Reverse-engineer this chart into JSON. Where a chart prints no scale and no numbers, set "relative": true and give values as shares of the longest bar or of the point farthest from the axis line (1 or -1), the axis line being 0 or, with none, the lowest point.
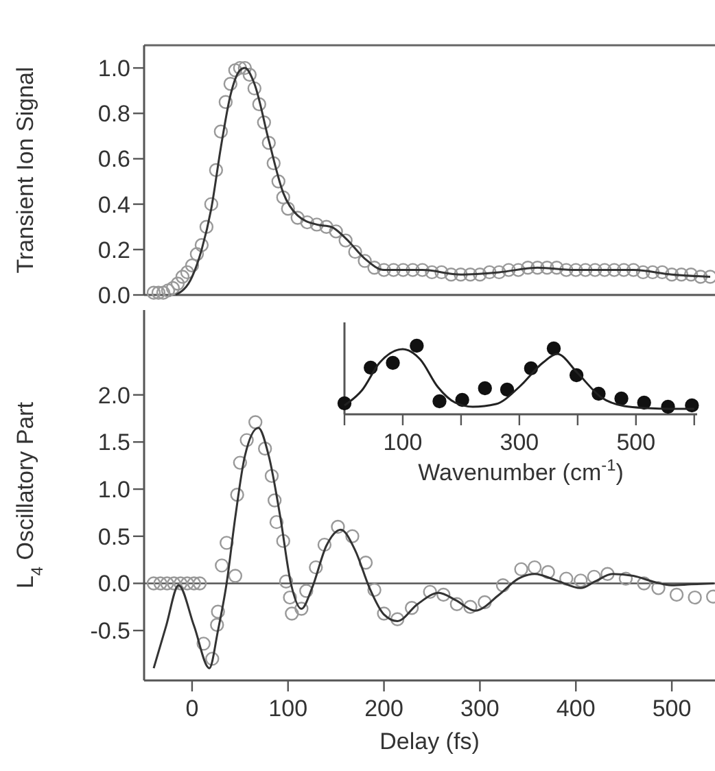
{
  "chart_data": [
    {
      "type": "scatter",
      "ylabel": "Transient Ion Signal",
      "xlim": [
        -50,
        545
      ],
      "ylim": [
        0,
        1.1
      ],
      "yticks": [
        {
          "value": 0,
          "label": "0.0"
        },
        0.2,
        0.4,
        0.6,
        0.8,
        {
          "value": 1,
          "label": "1.0"
        }
      ],
      "tick_labels": "y",
      "series": [
        {
          "marker": "circle",
          "color": "#999999",
          "x": [
            -40,
            -35,
            -30,
            -25,
            -20,
            -15,
            -10,
            -5,
            0,
            5,
            10,
            15,
            20,
            25,
            30,
            35,
            40,
            45,
            50,
            55,
            60,
            65,
            70,
            75,
            80,
            85,
            90,
            95,
            100,
            110,
            120,
            130,
            140,
            150,
            160,
            170,
            180,
            190,
            200,
            210,
            220,
            230,
            240,
            250,
            260,
            270,
            280,
            290,
            300,
            310,
            320,
            330,
            340,
            350,
            360,
            370,
            380,
            390,
            400,
            410,
            420,
            430,
            440,
            450,
            460,
            470,
            480,
            490,
            500,
            510,
            520,
            530,
            540
          ],
          "values": [
            0.01,
            0.01,
            0.01,
            0.02,
            0.03,
            0.05,
            0.08,
            0.1,
            0.13,
            0.18,
            0.22,
            0.3,
            0.4,
            0.55,
            0.72,
            0.85,
            0.93,
            0.99,
            1.0,
            1.0,
            0.97,
            0.91,
            0.84,
            0.76,
            0.67,
            0.58,
            0.5,
            0.43,
            0.38,
            0.34,
            0.32,
            0.31,
            0.3,
            0.28,
            0.24,
            0.19,
            0.15,
            0.12,
            0.11,
            0.11,
            0.11,
            0.11,
            0.11,
            0.1,
            0.1,
            0.09,
            0.09,
            0.09,
            0.09,
            0.1,
            0.1,
            0.11,
            0.11,
            0.12,
            0.12,
            0.12,
            0.12,
            0.11,
            0.11,
            0.11,
            0.11,
            0.11,
            0.11,
            0.11,
            0.11,
            0.1,
            0.1,
            0.1,
            0.09,
            0.09,
            0.09,
            0.08,
            0.08
          ]
        },
        {
          "type": "line",
          "color": "#333333",
          "x": [
            -17,
            0,
            10,
            20,
            30,
            40,
            50,
            55,
            65,
            80,
            95,
            110,
            130,
            145,
            160,
            180,
            200,
            240,
            280,
            320,
            360,
            400,
            460,
            500,
            540
          ],
          "values": [
            0,
            0.08,
            0.2,
            0.38,
            0.65,
            0.88,
            0.99,
            1.0,
            0.93,
            0.68,
            0.45,
            0.35,
            0.31,
            0.3,
            0.25,
            0.16,
            0.11,
            0.11,
            0.09,
            0.1,
            0.12,
            0.11,
            0.11,
            0.09,
            0.08
          ]
        }
      ]
    },
    {
      "type": "scatter",
      "xlabel": "Delay (fs)",
      "ylabel": "L$_{4}$ Oscillatory Part",
      "xlim": [
        -50,
        545
      ],
      "ylim": [
        -1.03,
        2.9
      ],
      "xticks": [
        0,
        100,
        200,
        300,
        400,
        500
      ],
      "yticks": [
        -0.5,
        {
          "value": 0,
          "label": "0.0"
        },
        0.5,
        {
          "value": 1,
          "label": "1.0"
        },
        1.5,
        {
          "value": 2,
          "label": "2.0"
        }
      ],
      "ref_lines": [
        {
          "axis": "y",
          "value": 0,
          "color": "#555555"
        }
      ],
      "series": [
        {
          "marker": "circle",
          "color": "#999999",
          "x": [
            -40,
            -33,
            -26,
            -19,
            -12,
            -5,
            2,
            8,
            12,
            21,
            26,
            27,
            31,
            36,
            45,
            47,
            50,
            57,
            66,
            76,
            83,
            86,
            88,
            95,
            98,
            102,
            104,
            114,
            119,
            129,
            138,
            152,
            167,
            181,
            190,
            200,
            214,
            229,
            248,
            262,
            276,
            290,
            305,
            324,
            343,
            357,
            371,
            390,
            405,
            419,
            433,
            452,
            471,
            486,
            505,
            524,
            543
          ],
          "values": [
            0,
            0,
            0,
            0,
            0,
            0,
            0,
            0,
            -0.64,
            -0.8,
            -0.44,
            -0.3,
            0.19,
            0.43,
            0.08,
            0.94,
            1.28,
            1.52,
            1.71,
            1.43,
            1.14,
            0.88,
            0.65,
            0.45,
            0.02,
            -0.15,
            -0.32,
            -0.27,
            -0.08,
            0.17,
            0.41,
            0.6,
            0.5,
            0.22,
            -0.07,
            -0.32,
            -0.38,
            -0.26,
            -0.09,
            -0.12,
            -0.22,
            -0.25,
            -0.2,
            -0.02,
            0.15,
            0.17,
            0.12,
            0.05,
            0.03,
            0.07,
            0.1,
            0.05,
            0,
            -0.05,
            -0.12,
            -0.15,
            -0.14
          ]
        },
        {
          "type": "line",
          "color": "#333333",
          "x": [
            -40,
            -27,
            -14,
            2,
            18,
            27,
            36,
            45,
            55,
            69,
            80,
            92,
            103,
            114,
            125,
            140,
            155,
            170,
            185,
            200,
            214,
            235,
            257,
            275,
            295,
            320,
            340,
            357,
            380,
            405,
            420,
            438,
            460,
            480,
            500,
            520,
            544
          ],
          "values": [
            -0.9,
            -0.45,
            -0.02,
            -0.45,
            -0.9,
            -0.5,
            0,
            0.7,
            1.35,
            1.65,
            1.35,
            0.7,
            0,
            -0.27,
            -0.05,
            0.4,
            0.57,
            0.35,
            -0.05,
            -0.33,
            -0.4,
            -0.22,
            -0.1,
            -0.18,
            -0.29,
            -0.12,
            0.05,
            0.1,
            0.03,
            -0.05,
            0.02,
            0.1,
            0.08,
            0.02,
            -0.02,
            -0.01,
            0
          ]
        }
      ]
    },
    {
      "type": "scatter",
      "xlabel": "Wavenumber (cm$^{-1}$)",
      "relative": true,
      "xlim": [
        0,
        605
      ],
      "xticks": [
        {
          "value": 0,
          "label": null
        },
        100,
        {
          "value": 200,
          "label": null
        },
        300,
        {
          "value": 400,
          "label": null
        },
        500,
        {
          "value": 600,
          "label": null
        }
      ],
      "series": [
        {
          "marker": "circle",
          "color": "#111111",
          "x": [
            0,
            45,
            83,
            124,
            163,
            202,
            241,
            279,
            320,
            359,
            398,
            436,
            475,
            514,
            555,
            596
          ],
          "values": [
            0.16,
            0.68,
            0.75,
            1.0,
            0.19,
            0.21,
            0.38,
            0.36,
            0.67,
            0.96,
            0.57,
            0.3,
            0.23,
            0.17,
            0.11,
            0.13
          ]
        },
        {
          "type": "line",
          "color": "#222222",
          "x": [
            0,
            30,
            60,
            100,
            130,
            160,
            190,
            220,
            260,
            300,
            340,
            365,
            400,
            440,
            480,
            520,
            560,
            600
          ],
          "values": [
            0.13,
            0.35,
            0.75,
            0.95,
            0.8,
            0.4,
            0.17,
            0.11,
            0.15,
            0.4,
            0.75,
            0.88,
            0.6,
            0.25,
            0.12,
            0.09,
            0.08,
            0.08
          ]
        }
      ]
    }
  ]
}
